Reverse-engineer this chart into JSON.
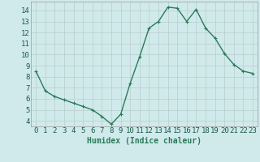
{
  "x": [
    0,
    1,
    2,
    3,
    4,
    5,
    6,
    7,
    8,
    9,
    10,
    11,
    12,
    13,
    14,
    15,
    16,
    17,
    18,
    19,
    20,
    21,
    22,
    23
  ],
  "y": [
    8.5,
    6.7,
    6.2,
    5.9,
    5.6,
    5.3,
    5.0,
    4.4,
    3.7,
    4.6,
    7.4,
    9.8,
    12.4,
    13.0,
    14.3,
    14.2,
    13.0,
    14.1,
    12.4,
    11.5,
    10.1,
    9.1,
    8.5,
    8.3
  ],
  "line_color": "#2a7a5a",
  "marker": "+",
  "marker_size": 3,
  "bg_color": "#d0eaeb",
  "grid_color": "#b8cccc",
  "xlabel": "Humidex (Indice chaleur)",
  "ylim": [
    3.5,
    14.8
  ],
  "yticks": [
    4,
    5,
    6,
    7,
    8,
    9,
    10,
    11,
    12,
    13,
    14
  ],
  "xticks": [
    0,
    1,
    2,
    3,
    4,
    5,
    6,
    7,
    8,
    9,
    10,
    11,
    12,
    13,
    14,
    15,
    16,
    17,
    18,
    19,
    20,
    21,
    22,
    23
  ],
  "xlabel_fontsize": 7,
  "tick_fontsize": 6.5,
  "line_width": 1.0
}
